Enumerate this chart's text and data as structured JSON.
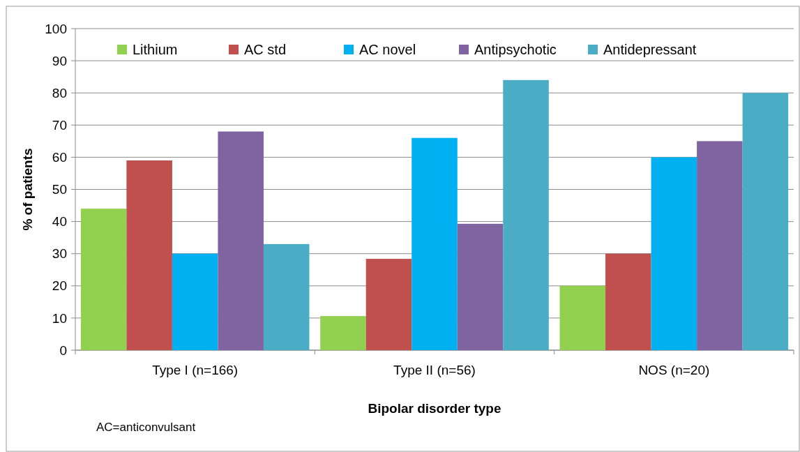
{
  "chart_data": {
    "type": "bar",
    "xlabel": "Bipolar disorder type",
    "ylabel": "% of patients",
    "categories": [
      "Type I (n=166)",
      "Type II (n=56)",
      "NOS (n=20)"
    ],
    "series": [
      {
        "name": "Lithium",
        "color": "#92d050",
        "values": [
          44,
          10.6,
          20
        ]
      },
      {
        "name": "AC std",
        "color": "#c0504d",
        "values": [
          59,
          28.4,
          30
        ]
      },
      {
        "name": "AC novel",
        "color": "#00b0f0",
        "values": [
          30,
          66,
          60
        ]
      },
      {
        "name": "Antipsychotic",
        "color": "#8064a2",
        "values": [
          68,
          39.3,
          65
        ]
      },
      {
        "name": "Antidepressant",
        "color": "#4bacc6",
        "values": [
          33,
          84,
          80
        ]
      }
    ],
    "ylim": [
      0,
      100
    ],
    "yticks": [
      0,
      10,
      20,
      30,
      40,
      50,
      60,
      70,
      80,
      90,
      100
    ],
    "grid": "y",
    "legend": "top",
    "annotations": [
      "AC=anticonvulsant"
    ]
  }
}
